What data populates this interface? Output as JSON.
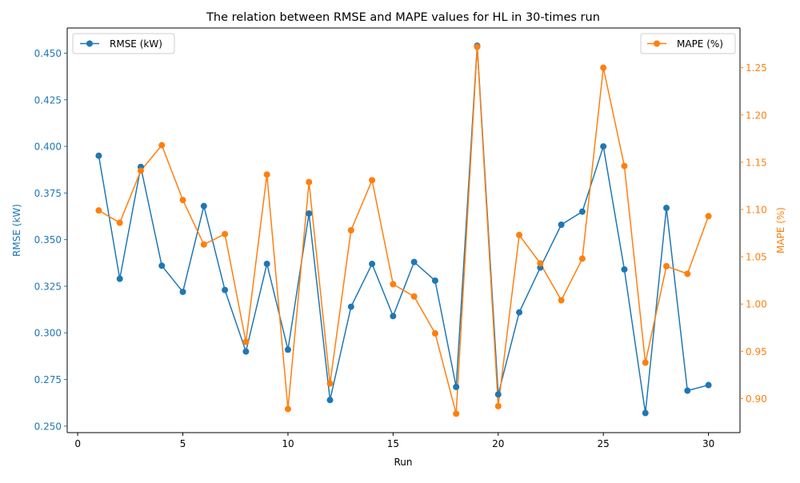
{
  "chart_data": {
    "type": "line",
    "title": "The relation between RMSE and MAPE values for HL in 30-times run",
    "xlabel": "Run",
    "xlim": [
      -0.5,
      31.5
    ],
    "xticks": [
      0,
      5,
      10,
      15,
      20,
      25,
      30
    ],
    "x": [
      1,
      2,
      3,
      4,
      5,
      6,
      7,
      8,
      9,
      10,
      11,
      12,
      13,
      14,
      15,
      16,
      17,
      18,
      19,
      20,
      21,
      22,
      23,
      24,
      25,
      26,
      27,
      28,
      29,
      30
    ],
    "grid": false,
    "y_left": {
      "label": "RMSE (kW)",
      "lim": [
        0.2465,
        0.4635
      ],
      "ticks": [
        0.25,
        0.275,
        0.3,
        0.325,
        0.35,
        0.375,
        0.4,
        0.425,
        0.45
      ],
      "tick_labels": [
        "0.250",
        "0.275",
        "0.300",
        "0.325",
        "0.350",
        "0.375",
        "0.400",
        "0.425",
        "0.450"
      ],
      "color": "#1f77b4"
    },
    "y_right": {
      "label": "MAPE (%)",
      "lim": [
        0.864,
        1.292
      ],
      "ticks": [
        0.9,
        0.95,
        1.0,
        1.05,
        1.1,
        1.15,
        1.2,
        1.25
      ],
      "tick_labels": [
        "0.90",
        "0.95",
        "1.00",
        "1.05",
        "1.10",
        "1.15",
        "1.20",
        "1.25"
      ],
      "color": "#ff7f0e"
    },
    "series": [
      {
        "name": "RMSE (kW)",
        "axis": "left",
        "color": "#1f77b4",
        "legend_position": "upper-left",
        "values": [
          0.395,
          0.329,
          0.389,
          0.336,
          0.322,
          0.368,
          0.323,
          0.29,
          0.337,
          0.291,
          0.364,
          0.264,
          0.314,
          0.337,
          0.309,
          0.338,
          0.328,
          0.271,
          0.454,
          0.267,
          0.311,
          0.335,
          0.358,
          0.365,
          0.4,
          0.334,
          0.257,
          0.367,
          0.269,
          0.272
        ]
      },
      {
        "name": "MAPE (%)",
        "axis": "right",
        "color": "#ff7f0e",
        "legend_position": "upper-right",
        "values": [
          1.099,
          1.086,
          1.141,
          1.168,
          1.11,
          1.063,
          1.074,
          0.96,
          1.137,
          0.889,
          1.129,
          0.916,
          1.078,
          1.131,
          1.021,
          1.008,
          0.969,
          0.884,
          1.272,
          0.892,
          1.073,
          1.043,
          1.004,
          1.048,
          1.25,
          1.146,
          0.938,
          1.04,
          1.032,
          1.093
        ]
      }
    ]
  }
}
